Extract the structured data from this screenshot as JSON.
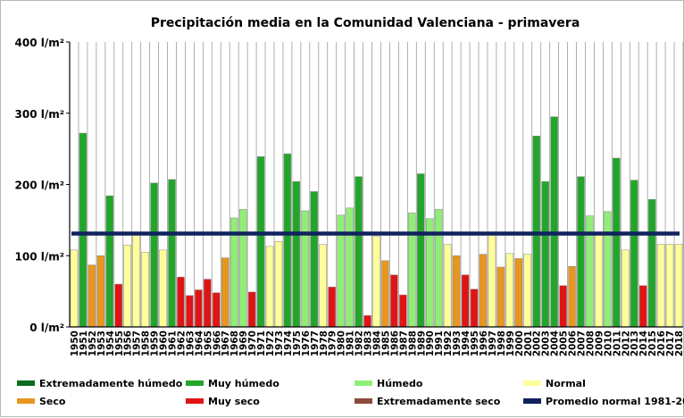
{
  "chart_data": {
    "type": "bar",
    "title": "Precipitación media en la Comunidad Valenciana - primavera",
    "xlabel": "",
    "ylabel": "",
    "ylim": [
      0,
      400
    ],
    "yticks": [
      0,
      100,
      200,
      300,
      400
    ],
    "ytick_labels": [
      "0 l/m²",
      "100 l/m²",
      "200 l/m²",
      "300 l/m²",
      "400 l/m²"
    ],
    "grid": "vertical",
    "legend_position": "bottom",
    "categories": [
      "1950",
      "1951",
      "1952",
      "1953",
      "1954",
      "1955",
      "1956",
      "1957",
      "1958",
      "1959",
      "1960",
      "1961",
      "1962",
      "1963",
      "1964",
      "1965",
      "1966",
      "1967",
      "1968",
      "1969",
      "1970",
      "1971",
      "1972",
      "1973",
      "1974",
      "1975",
      "1976",
      "1977",
      "1978",
      "1979",
      "1980",
      "1981",
      "1982",
      "1983",
      "1984",
      "1985",
      "1986",
      "1987",
      "1988",
      "1989",
      "1990",
      "1991",
      "1992",
      "1993",
      "1994",
      "1995",
      "1996",
      "1997",
      "1998",
      "1999",
      "2000",
      "2001",
      "2002",
      "2003",
      "2004",
      "2005",
      "2006",
      "2007",
      "2008",
      "2009",
      "2010",
      "2011",
      "2012",
      "2013",
      "2014",
      "2015",
      "2016",
      "2017",
      "2018"
    ],
    "values": [
      108,
      272,
      87,
      100,
      184,
      60,
      115,
      130,
      105,
      202,
      108,
      207,
      70,
      44,
      52,
      67,
      48,
      97,
      153,
      165,
      49,
      239,
      113,
      120,
      243,
      204,
      163,
      190,
      116,
      56,
      157,
      167,
      211,
      16,
      127,
      93,
      73,
      45,
      160,
      215,
      152,
      165,
      116,
      100,
      73,
      53,
      102,
      130,
      84,
      103,
      96,
      102,
      268,
      204,
      295,
      58,
      85,
      211,
      156,
      130,
      162,
      237,
      108,
      206,
      58,
      179,
      116,
      116,
      116
    ],
    "classes": [
      "Normal",
      "Muy húmedo",
      "Seco",
      "Seco",
      "Muy húmedo",
      "Muy seco",
      "Normal",
      "Normal",
      "Normal",
      "Muy húmedo",
      "Normal",
      "Muy húmedo",
      "Muy seco",
      "Muy seco",
      "Muy seco",
      "Muy seco",
      "Muy seco",
      "Seco",
      "Húmedo",
      "Húmedo",
      "Muy seco",
      "Muy húmedo",
      "Normal",
      "Normal",
      "Muy húmedo",
      "Muy húmedo",
      "Húmedo",
      "Muy húmedo",
      "Normal",
      "Muy seco",
      "Húmedo",
      "Húmedo",
      "Muy húmedo",
      "Muy seco",
      "Normal",
      "Seco",
      "Muy seco",
      "Muy seco",
      "Húmedo",
      "Muy húmedo",
      "Húmedo",
      "Húmedo",
      "Normal",
      "Seco",
      "Muy seco",
      "Muy seco",
      "Seco",
      "Normal",
      "Seco",
      "Normal",
      "Seco",
      "Normal",
      "Muy húmedo",
      "Muy húmedo",
      "Muy húmedo",
      "Muy seco",
      "Seco",
      "Muy húmedo",
      "Húmedo",
      "Normal",
      "Húmedo",
      "Muy húmedo",
      "Normal",
      "Muy húmedo",
      "Muy seco",
      "Muy húmedo",
      "Normal",
      "Normal",
      "Normal"
    ],
    "reference_line": {
      "name": "Promedio normal 1981-2010",
      "value": 131
    },
    "legend": [
      {
        "label": "Extremadamente húmedo",
        "color": "#0b6b1e"
      },
      {
        "label": "Muy húmedo",
        "color": "#22a62a"
      },
      {
        "label": "Húmedo",
        "color": "#90ee77"
      },
      {
        "label": "Normal",
        "color": "#ffff99"
      },
      {
        "label": "Seco",
        "color": "#e8961e"
      },
      {
        "label": "Muy seco",
        "color": "#e01414"
      },
      {
        "label": "Extremadamente seco",
        "color": "#8c4a3c"
      },
      {
        "label": "Promedio normal 1981-2010",
        "color": "#10225e"
      }
    ]
  },
  "colors": {
    "Extremadamente húmedo": "#0b6b1e",
    "Muy húmedo": "#22a62a",
    "Húmedo": "#90ee77",
    "Normal": "#ffff99",
    "Seco": "#e8961e",
    "Muy seco": "#e01414",
    "Extremadamente seco": "#8c4a3c",
    "reference_line": "#10225e",
    "grid": "#9a9a9a",
    "bar_stroke": "#8a8a8a"
  }
}
